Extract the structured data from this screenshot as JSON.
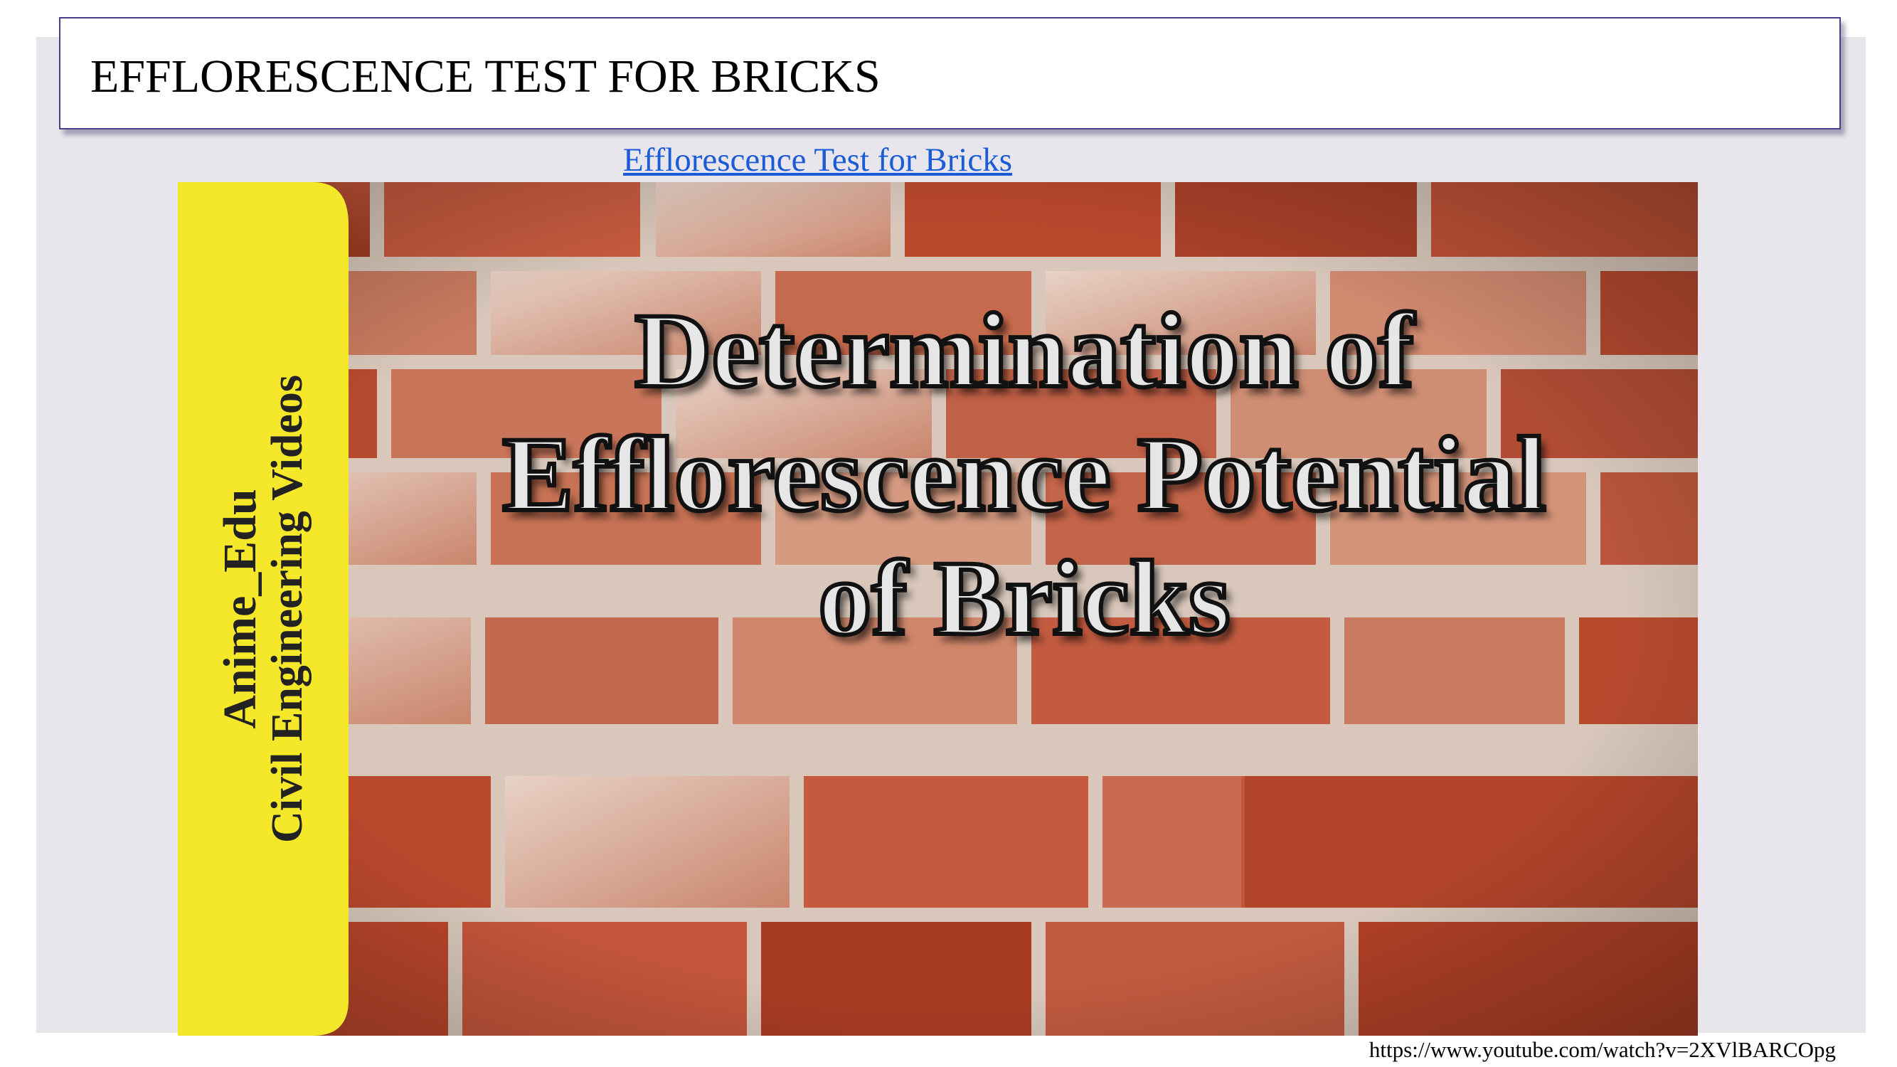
{
  "slide": {
    "title": "EFFLORESCENCE TEST FOR BRICKS",
    "link_text": "Efflorescence Test for Bricks",
    "source_url": "https://www.youtube.com/watch?v=2XVlBARCOpg"
  },
  "thumbnail": {
    "side_line_1": "Anime_Edu",
    "side_line_2": "Civil Engineering Videos",
    "headline_1": "Determination of",
    "headline_2": "Efflorescence Potential",
    "headline_3": "of Bricks",
    "colors": {
      "banner": "#f5e82a",
      "brick": "#b5452a",
      "mortar": "#d9c9bd"
    }
  }
}
